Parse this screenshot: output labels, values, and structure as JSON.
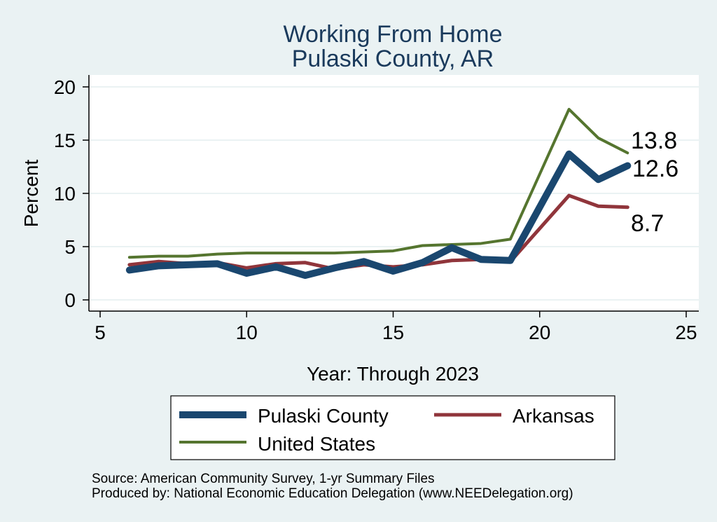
{
  "chart_data": {
    "type": "line",
    "title": [
      "Working From Home",
      "Pulaski County, AR"
    ],
    "xlabel": "Year: Through 2023",
    "ylabel": "Percent",
    "xlim": [
      5,
      25
    ],
    "ylim": [
      0,
      20
    ],
    "xticks": [
      5,
      10,
      15,
      20,
      25
    ],
    "yticks": [
      0,
      5,
      10,
      15,
      20
    ],
    "grid": true,
    "legend_position": "bottom",
    "series": [
      {
        "name": "Pulaski County",
        "color": "#1a476f",
        "x": [
          6,
          7,
          8,
          9,
          10,
          11,
          12,
          13,
          14,
          15,
          16,
          17,
          18,
          19,
          21,
          22,
          23
        ],
        "y": [
          2.8,
          3.2,
          3.3,
          3.4,
          2.5,
          3.1,
          2.3,
          3.0,
          3.6,
          2.7,
          3.5,
          4.9,
          3.8,
          3.7,
          13.7,
          11.3,
          12.6
        ],
        "end_label": "12.6"
      },
      {
        "name": "Arkansas",
        "color": "#90353b",
        "x": [
          6,
          7,
          8,
          9,
          10,
          11,
          12,
          13,
          14,
          15,
          16,
          17,
          18,
          19,
          21,
          22,
          23
        ],
        "y": [
          3.3,
          3.6,
          3.4,
          3.5,
          3.0,
          3.4,
          3.5,
          2.9,
          3.3,
          3.1,
          3.3,
          3.7,
          3.8,
          3.6,
          9.8,
          8.8,
          8.7
        ],
        "end_label": "8.7"
      },
      {
        "name": "United States",
        "color": "#55752f",
        "x": [
          6,
          7,
          8,
          9,
          10,
          11,
          12,
          13,
          14,
          15,
          16,
          17,
          18,
          19,
          21,
          22,
          23
        ],
        "y": [
          4.0,
          4.1,
          4.1,
          4.3,
          4.4,
          4.4,
          4.4,
          4.4,
          4.5,
          4.6,
          5.1,
          5.2,
          5.3,
          5.7,
          17.9,
          15.2,
          13.8
        ],
        "end_label": "13.8"
      }
    ]
  },
  "footer": {
    "source": "Source: American Community Survey, 1-yr Summary Files",
    "produced": "Produced by: National Economic Education Delegation (www.NEEDelegation.org)"
  }
}
